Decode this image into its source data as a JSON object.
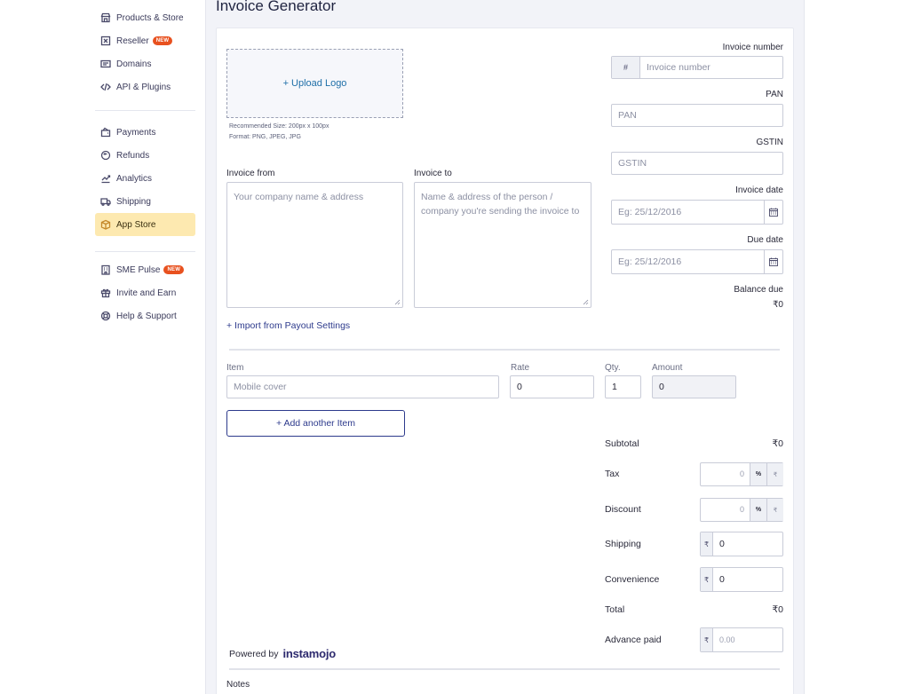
{
  "sidebar": {
    "group1": [
      {
        "label": "Products & Store",
        "icon": "store-icon"
      },
      {
        "label": "Reseller",
        "icon": "reseller-icon",
        "badge": "NEW"
      },
      {
        "label": "Domains",
        "icon": "domain-icon"
      },
      {
        "label": "API & Plugins",
        "icon": "code-icon"
      }
    ],
    "group2": [
      {
        "label": "Payments",
        "icon": "payments-icon"
      },
      {
        "label": "Refunds",
        "icon": "refund-icon"
      },
      {
        "label": "Analytics",
        "icon": "analytics-icon"
      },
      {
        "label": "Shipping",
        "icon": "truck-icon"
      },
      {
        "label": "App Store",
        "icon": "box-icon",
        "active": true
      }
    ],
    "group3": [
      {
        "label": "SME Pulse",
        "icon": "building-icon",
        "badge": "NEW"
      },
      {
        "label": "Invite and Earn",
        "icon": "gift-icon"
      },
      {
        "label": "Help & Support",
        "icon": "lifebuoy-icon"
      }
    ]
  },
  "page": {
    "title": "Invoice Generator"
  },
  "logo": {
    "upload_label": "+ Upload Logo",
    "hint_size": "Recommended Size: 200px x 100px",
    "hint_format": "Format: PNG, JPEG, JPG"
  },
  "invoice_from": {
    "label": "Invoice from",
    "placeholder": "Your company name & address"
  },
  "invoice_to": {
    "label": "Invoice to",
    "placeholder": "Name & address of the person / company you're sending the invoice to"
  },
  "import_link": "+ Import from Payout Settings",
  "right_fields": {
    "invoice_number": {
      "label": "Invoice number",
      "prefix": "#",
      "placeholder": "Invoice number"
    },
    "pan": {
      "label": "PAN",
      "placeholder": "PAN"
    },
    "gstin": {
      "label": "GSTIN",
      "placeholder": "GSTIN"
    },
    "invoice_date": {
      "label": "Invoice date",
      "placeholder": "Eg: 25/12/2016"
    },
    "due_date": {
      "label": "Due date",
      "placeholder": "Eg: 25/12/2016"
    },
    "balance_due": {
      "label": "Balance due",
      "value": "₹0"
    }
  },
  "items": {
    "headers": {
      "item": "Item",
      "rate": "Rate",
      "qty": "Qty.",
      "amount": "Amount"
    },
    "row": {
      "item_placeholder": "Mobile cover",
      "rate": "0",
      "qty": "1",
      "amount": "0"
    },
    "add_label": "+ Add another Item"
  },
  "summary": {
    "subtotal": {
      "label": "Subtotal",
      "value": "₹0"
    },
    "tax": {
      "label": "Tax",
      "value": "0",
      "unit_pct": "%",
      "unit_rs": "₹"
    },
    "discount": {
      "label": "Discount",
      "value": "0",
      "unit_pct": "%",
      "unit_rs": "₹"
    },
    "shipping": {
      "label": "Shipping",
      "symbol": "₹",
      "value": "0"
    },
    "convenience": {
      "label": "Convenience",
      "symbol": "₹",
      "value": "0"
    },
    "total": {
      "label": "Total",
      "value": "₹0"
    },
    "advance_paid": {
      "label": "Advance paid",
      "symbol": "₹",
      "placeholder": "0.00"
    }
  },
  "footer": {
    "powered_by": "Powered by",
    "brand": "instamojo",
    "notes_label": "Notes"
  },
  "colors": {
    "accent": "#2d3a8c",
    "active_bg": "#fde9b0",
    "badge": "#e8511f"
  }
}
